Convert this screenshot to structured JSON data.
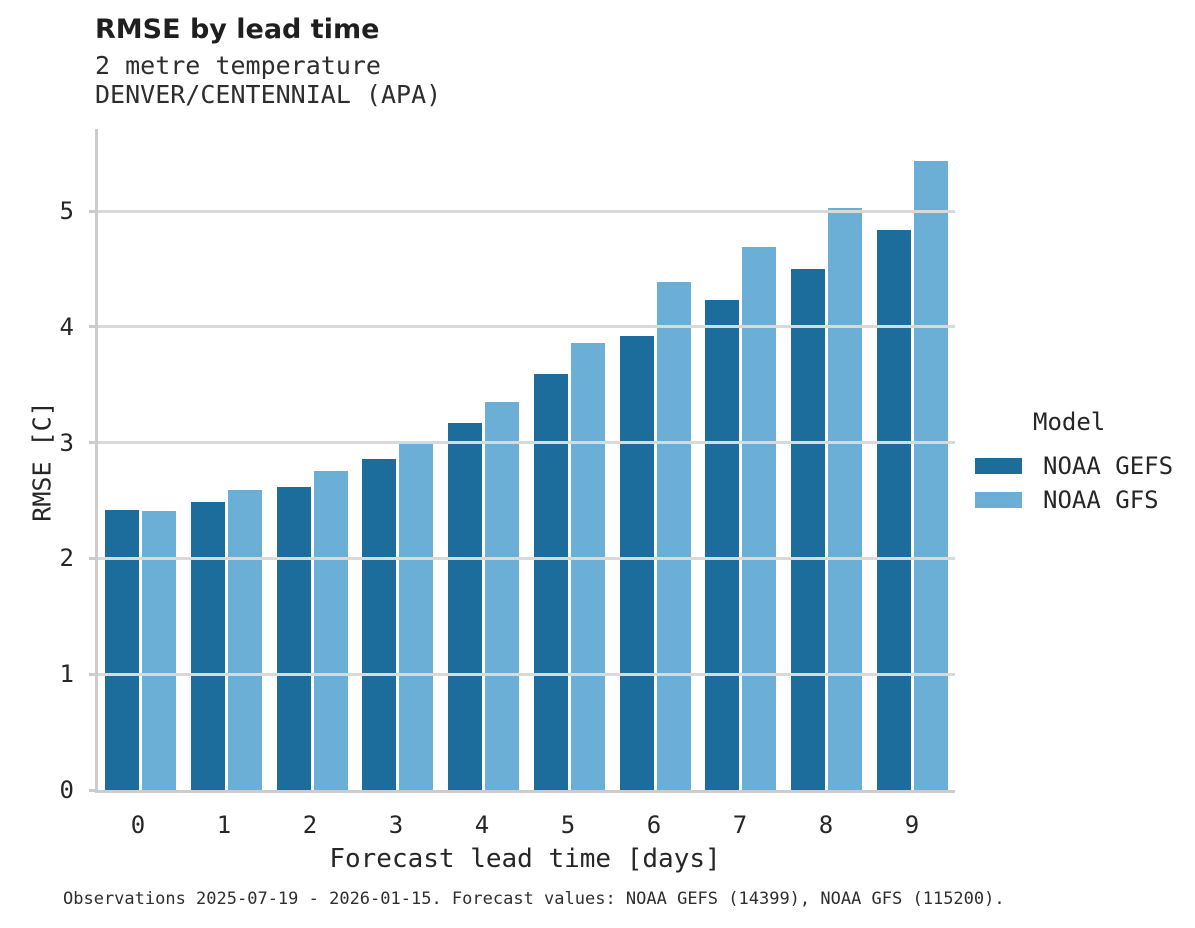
{
  "chart_data": {
    "type": "bar",
    "title": "RMSE by lead time",
    "subtitle": "2 metre temperature",
    "station": "DENVER/CENTENNIAL (APA)",
    "xlabel": "Forecast lead time [days]",
    "ylabel": "RMSE [C]",
    "categories": [
      "0",
      "1",
      "2",
      "3",
      "4",
      "5",
      "6",
      "7",
      "8",
      "9"
    ],
    "series": [
      {
        "name": "NOAA GEFS",
        "color": "#1c6d9c",
        "values": [
          2.42,
          2.49,
          2.62,
          2.86,
          3.17,
          3.59,
          3.92,
          4.23,
          4.5,
          4.84
        ]
      },
      {
        "name": "NOAA GFS",
        "color": "#6cafd6",
        "values": [
          2.41,
          2.59,
          2.76,
          3.0,
          3.35,
          3.86,
          4.39,
          4.69,
          5.03,
          5.43
        ]
      }
    ],
    "ylim": [
      0,
      5.71
    ],
    "yticks": [
      0,
      1,
      2,
      3,
      4,
      5
    ],
    "grid": "horizontal",
    "legend": {
      "title": "Model",
      "position": "right-of-plot"
    }
  },
  "caption": "Observations 2025-07-19 - 2026-01-15. Forecast values: NOAA GEFS (14399), NOAA GFS (115200).",
  "colors": {
    "gefs_bar": "#1c6d9c",
    "gfs_bar": "#6cafd6",
    "gridline": "#d9d9d9",
    "spine": "#cccccc",
    "text": "#262626"
  }
}
